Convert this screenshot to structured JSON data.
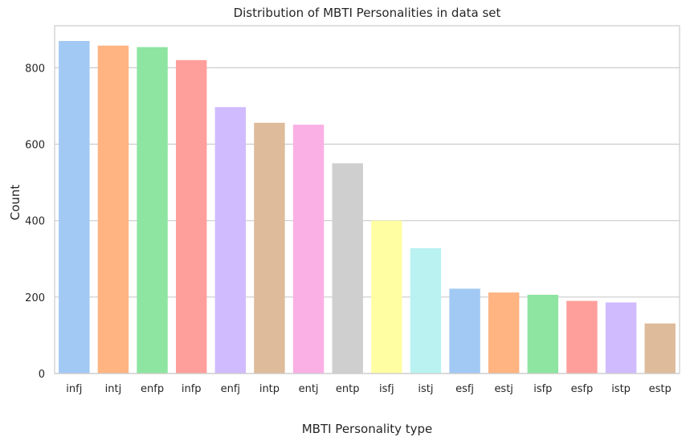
{
  "chart_data": {
    "type": "bar",
    "title": "Distribution of MBTI Personalities in data set",
    "xlabel": "MBTI Personality type",
    "ylabel": "Count",
    "categories": [
      "infj",
      "intj",
      "enfp",
      "infp",
      "enfj",
      "intp",
      "entj",
      "entp",
      "isfj",
      "istj",
      "esfj",
      "estj",
      "isfp",
      "esfp",
      "istp",
      "estp"
    ],
    "values": [
      870,
      858,
      854,
      820,
      697,
      656,
      651,
      550,
      400,
      328,
      222,
      212,
      206,
      190,
      186,
      131
    ],
    "ylim": [
      0,
      910
    ],
    "yticks": [
      0,
      200,
      400,
      600,
      800
    ],
    "grid": "horizontal",
    "colors": [
      "#a1c9f4",
      "#ffb482",
      "#8de5a1",
      "#ff9f9b",
      "#d0bbff",
      "#debb9b",
      "#fab0e4",
      "#cfcfcf",
      "#fffea3",
      "#b9f2f0",
      "#a1c9f4",
      "#ffb482",
      "#8de5a1",
      "#ff9f9b",
      "#d0bbff",
      "#debb9b"
    ]
  }
}
